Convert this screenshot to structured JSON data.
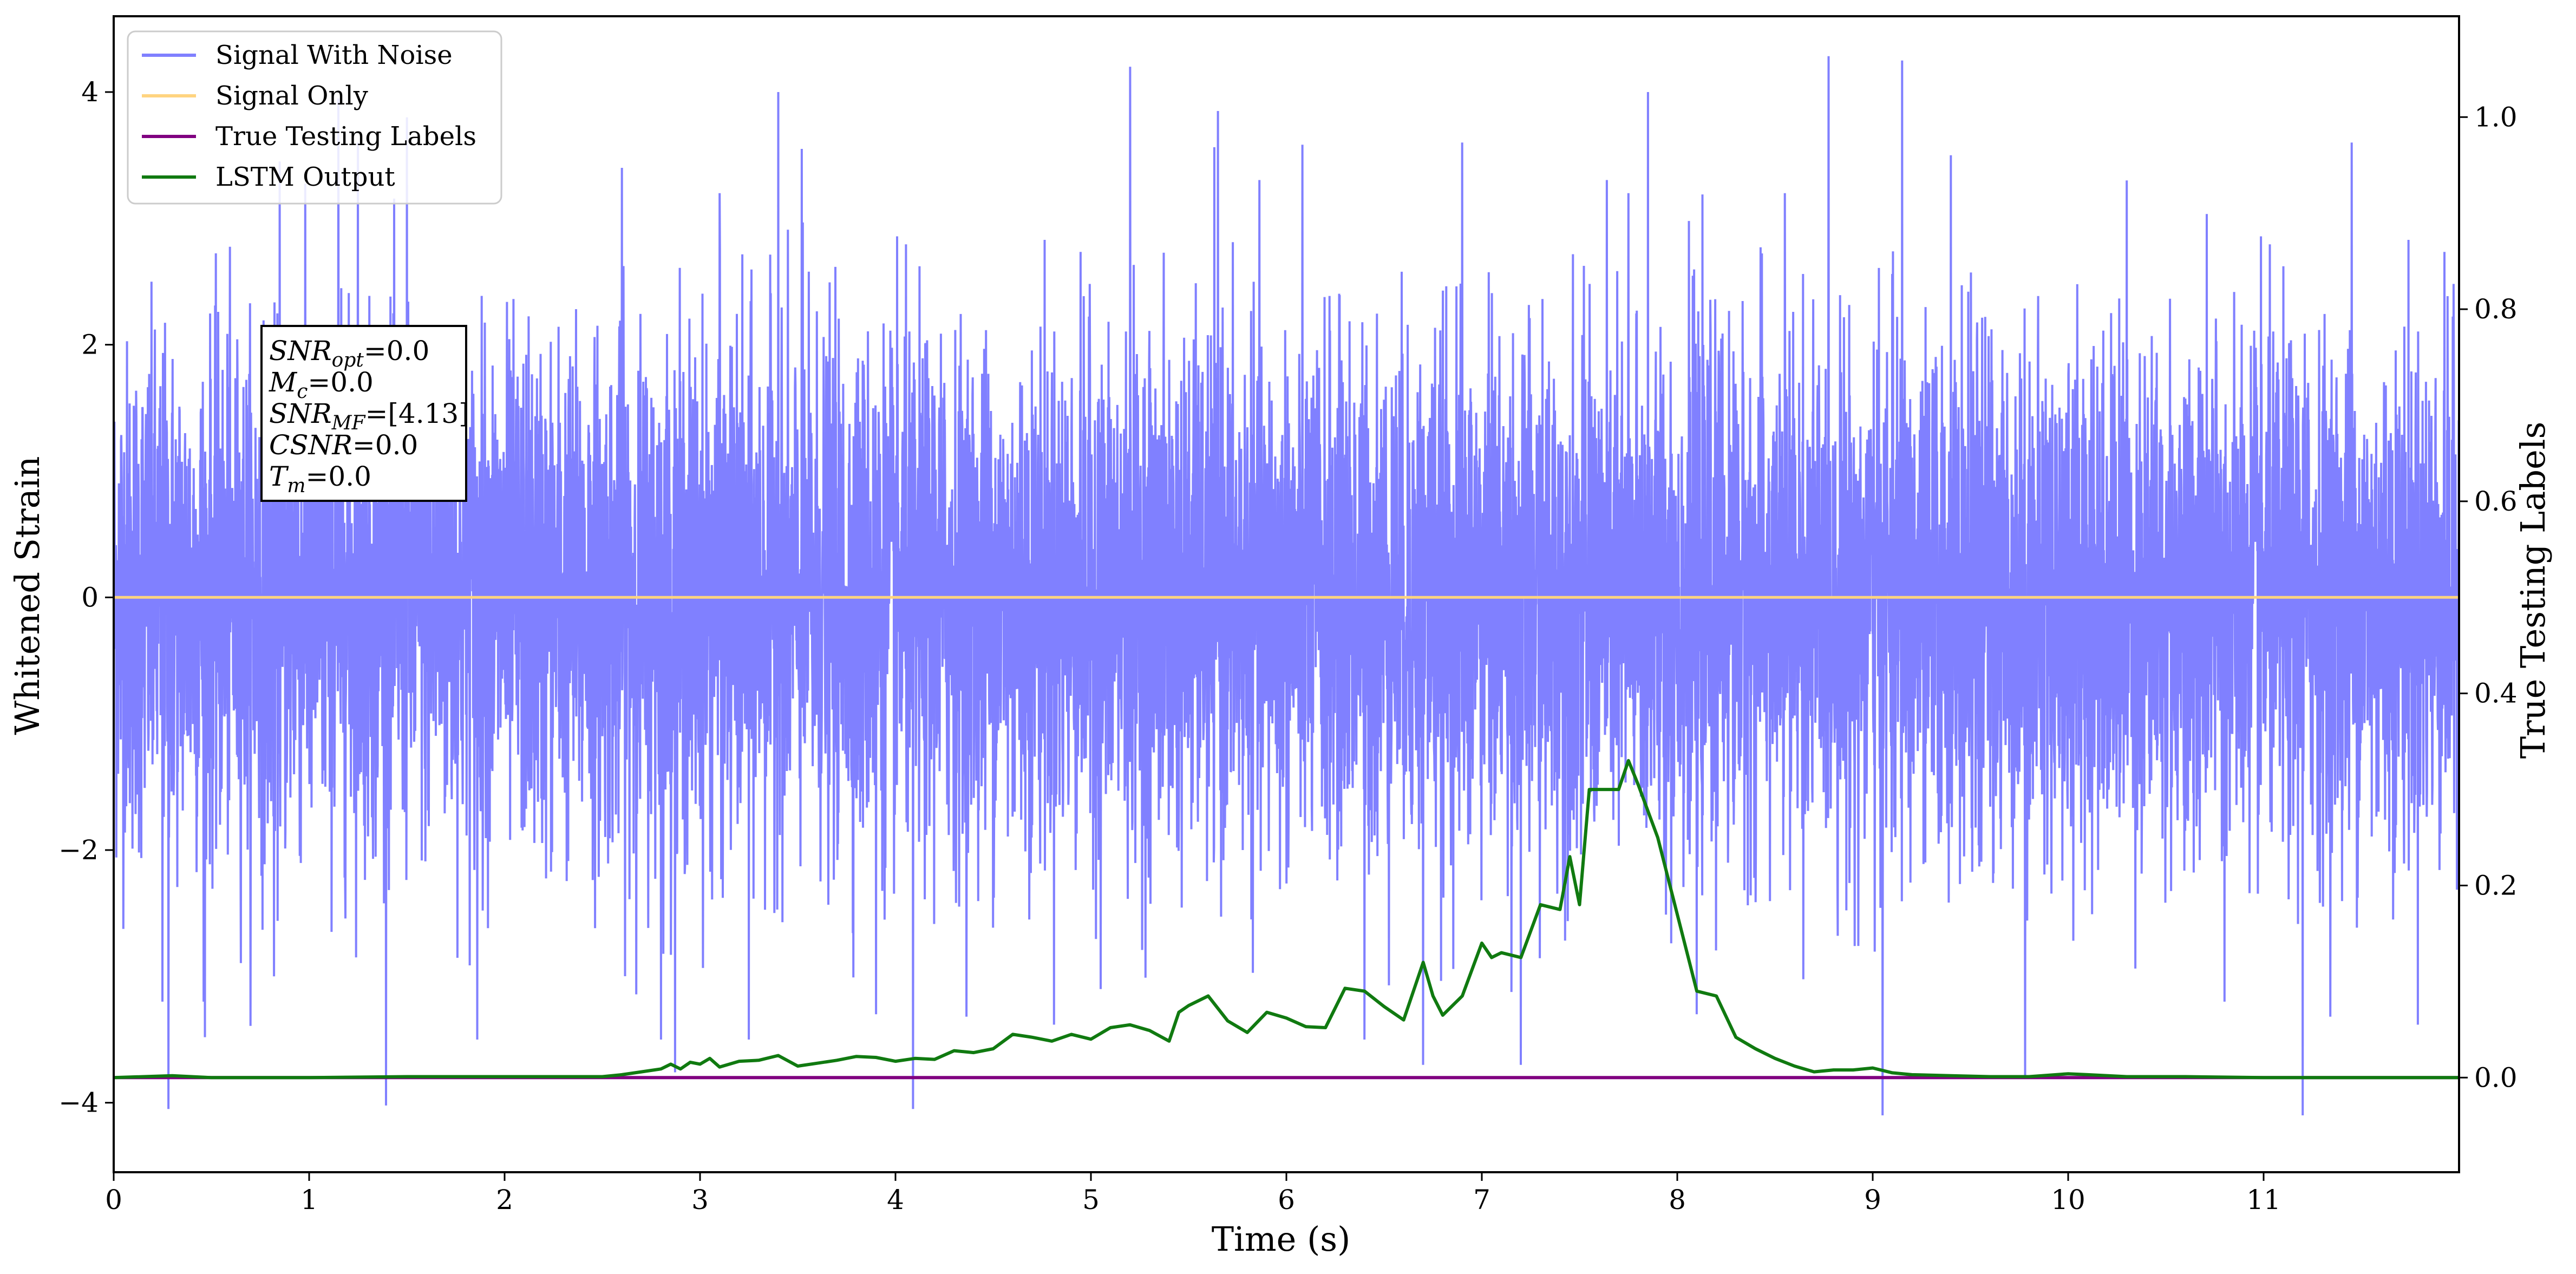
{
  "chart_data": {
    "type": "line",
    "title": "",
    "xlabel": "Time (s)",
    "ylabel": "Whitened Strain",
    "y2label": "True Testing Labels",
    "xlim": [
      0,
      12
    ],
    "ylim": [
      -4.55,
      4.6
    ],
    "y2lim": [
      -0.0985,
      1.105
    ],
    "x_ticks": [
      "0",
      "1",
      "2",
      "3",
      "4",
      "5",
      "6",
      "7",
      "8",
      "9",
      "10",
      "11"
    ],
    "y_ticks": [
      "−4",
      "−2",
      "0",
      "2",
      "4"
    ],
    "y2_ticks": [
      "0.0",
      "0.2",
      "0.4",
      "0.6",
      "0.8",
      "1.0"
    ],
    "grid": false,
    "legend_position": "top-left",
    "legend": [
      "Signal With Noise",
      "Signal Only",
      "True Testing Labels",
      "LSTM Output"
    ],
    "annotation": {
      "lines": [
        {
          "base": "SNR",
          "sub": "opt",
          "rest": "=0.0"
        },
        {
          "base": "M",
          "sub": "c",
          "rest": "=0.0"
        },
        {
          "base": "SNR",
          "sub": "MF",
          "rest": "=[4.13]"
        },
        {
          "base": "CSNR",
          "sub": "",
          "rest": "=0.0"
        },
        {
          "base": "T",
          "sub": "m",
          "rest": "=0.0"
        }
      ]
    },
    "colors": {
      "noise": "#8080ff",
      "signal": "#ffd480",
      "labels": "#800080",
      "lstm": "#107a10"
    },
    "series": [
      {
        "name": "Signal With Noise",
        "axis": "left",
        "noise_band": [
          -1.6,
          1.6
        ],
        "spikes": [
          {
            "x": 0.25,
            "y": -3.2
          },
          {
            "x": 0.28,
            "y": -4.05
          },
          {
            "x": 0.46,
            "y": -3.2
          },
          {
            "x": 0.82,
            "y": -3.0
          },
          {
            "x": 0.85,
            "y": 3.45
          },
          {
            "x": 1.15,
            "y": 3.95
          },
          {
            "x": 1.25,
            "y": 3.6
          },
          {
            "x": 1.5,
            "y": 3.8
          },
          {
            "x": 1.86,
            "y": -3.5
          },
          {
            "x": 2.6,
            "y": 3.4
          },
          {
            "x": 2.8,
            "y": -3.5
          },
          {
            "x": 3.1,
            "y": 3.2
          },
          {
            "x": 3.25,
            "y": -3.5
          },
          {
            "x": 3.4,
            "y": 4.0
          },
          {
            "x": 3.52,
            "y": 3.55
          },
          {
            "x": 3.9,
            "y": -3.3
          },
          {
            "x": 4.09,
            "y": -4.05
          },
          {
            "x": 5.2,
            "y": 4.2
          },
          {
            "x": 5.05,
            "y": -3.1
          },
          {
            "x": 5.65,
            "y": 3.85
          },
          {
            "x": 6.4,
            "y": -3.5
          },
          {
            "x": 6.9,
            "y": 3.6
          },
          {
            "x": 6.7,
            "y": -3.7
          },
          {
            "x": 7.2,
            "y": -3.7
          },
          {
            "x": 7.85,
            "y": 4.0
          },
          {
            "x": 7.75,
            "y": 3.2
          },
          {
            "x": 8.1,
            "y": -3.3
          },
          {
            "x": 8.55,
            "y": 3.2
          },
          {
            "x": 9.05,
            "y": -4.1
          },
          {
            "x": 9.15,
            "y": 4.25
          },
          {
            "x": 9.4,
            "y": 3.5
          },
          {
            "x": 9.78,
            "y": -3.8
          },
          {
            "x": 10.3,
            "y": 3.3
          },
          {
            "x": 10.8,
            "y": -3.2
          },
          {
            "x": 11.2,
            "y": -4.1
          },
          {
            "x": 11.45,
            "y": 3.6
          }
        ]
      },
      {
        "name": "Signal Only",
        "axis": "left",
        "x": [
          0,
          12
        ],
        "y": [
          0,
          0
        ]
      },
      {
        "name": "True Testing Labels",
        "axis": "right",
        "x": [
          0,
          12
        ],
        "y": [
          0,
          0
        ]
      },
      {
        "name": "LSTM Output",
        "axis": "right",
        "x": [
          0,
          0.3,
          0.5,
          1,
          1.5,
          2,
          2.5,
          2.6,
          2.7,
          2.8,
          2.85,
          2.9,
          2.95,
          3.0,
          3.05,
          3.1,
          3.2,
          3.3,
          3.4,
          3.5,
          3.6,
          3.7,
          3.8,
          3.9,
          4.0,
          4.1,
          4.2,
          4.3,
          4.4,
          4.5,
          4.6,
          4.7,
          4.8,
          4.9,
          5.0,
          5.1,
          5.2,
          5.3,
          5.4,
          5.45,
          5.5,
          5.6,
          5.7,
          5.8,
          5.9,
          6.0,
          6.1,
          6.2,
          6.3,
          6.4,
          6.5,
          6.6,
          6.7,
          6.75,
          6.8,
          6.9,
          7.0,
          7.05,
          7.1,
          7.2,
          7.3,
          7.4,
          7.45,
          7.5,
          7.55,
          7.6,
          7.7,
          7.75,
          7.8,
          7.9,
          8.0,
          8.1,
          8.2,
          8.3,
          8.4,
          8.5,
          8.6,
          8.7,
          8.8,
          8.9,
          9.0,
          9.1,
          9.2,
          9.4,
          9.6,
          9.8,
          10.0,
          10.1,
          10.3,
          10.6,
          11,
          11.5,
          12
        ],
        "y": [
          0,
          0.002,
          0,
          0,
          0.001,
          0.001,
          0.001,
          0.003,
          0.006,
          0.009,
          0.014,
          0.009,
          0.016,
          0.014,
          0.02,
          0.011,
          0.017,
          0.018,
          0.023,
          0.012,
          0.015,
          0.018,
          0.022,
          0.021,
          0.017,
          0.02,
          0.019,
          0.028,
          0.026,
          0.03,
          0.045,
          0.042,
          0.038,
          0.045,
          0.04,
          0.052,
          0.055,
          0.049,
          0.038,
          0.068,
          0.075,
          0.085,
          0.059,
          0.047,
          0.068,
          0.062,
          0.053,
          0.052,
          0.093,
          0.09,
          0.074,
          0.06,
          0.12,
          0.085,
          0.065,
          0.085,
          0.14,
          0.125,
          0.13,
          0.125,
          0.18,
          0.175,
          0.23,
          0.18,
          0.3,
          0.3,
          0.3,
          0.33,
          0.305,
          0.25,
          0.17,
          0.09,
          0.085,
          0.042,
          0.03,
          0.02,
          0.012,
          0.006,
          0.008,
          0.008,
          0.01,
          0.005,
          0.003,
          0.002,
          0.001,
          0.001,
          0.004,
          0.003,
          0.001,
          0.001,
          0,
          0,
          0
        ]
      }
    ]
  }
}
